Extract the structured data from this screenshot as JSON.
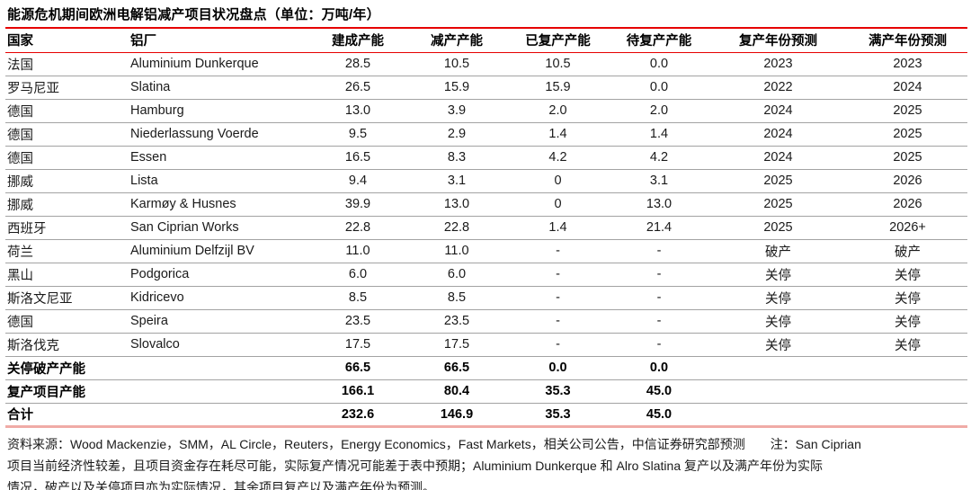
{
  "title": "能源危机期间欧洲电解铝减产项目状况盘点（单位：万吨/年）",
  "table": {
    "columns": [
      {
        "label": "国家"
      },
      {
        "label": "铝厂"
      },
      {
        "label": "建成产能"
      },
      {
        "label": "减产产能"
      },
      {
        "label": "已复产产能"
      },
      {
        "label": "待复产产能"
      },
      {
        "label": "复产年份预测"
      },
      {
        "label": "满产年份预测"
      }
    ],
    "rows": [
      {
        "country": "法国",
        "plant": "Aluminium Dunkerque",
        "built": "28.5",
        "cut": "10.5",
        "resumed": "10.5",
        "pending": "0.0",
        "resume_year": "2023",
        "full_year": "2023"
      },
      {
        "country": "罗马尼亚",
        "plant": "Slatina",
        "built": "26.5",
        "cut": "15.9",
        "resumed": "15.9",
        "pending": "0.0",
        "resume_year": "2022",
        "full_year": "2024"
      },
      {
        "country": "德国",
        "plant": "Hamburg",
        "built": "13.0",
        "cut": "3.9",
        "resumed": "2.0",
        "pending": "2.0",
        "resume_year": "2024",
        "full_year": "2025"
      },
      {
        "country": "德国",
        "plant": "Niederlassung Voerde",
        "built": "9.5",
        "cut": "2.9",
        "resumed": "1.4",
        "pending": "1.4",
        "resume_year": "2024",
        "full_year": "2025"
      },
      {
        "country": "德国",
        "plant": "Essen",
        "built": "16.5",
        "cut": "8.3",
        "resumed": "4.2",
        "pending": "4.2",
        "resume_year": "2024",
        "full_year": "2025"
      },
      {
        "country": "挪威",
        "plant": "Lista",
        "built": "9.4",
        "cut": "3.1",
        "resumed": "0",
        "pending": "3.1",
        "resume_year": "2025",
        "full_year": "2026"
      },
      {
        "country": "挪威",
        "plant": "Karmøy & Husnes",
        "built": "39.9",
        "cut": "13.0",
        "resumed": "0",
        "pending": "13.0",
        "resume_year": "2025",
        "full_year": "2026"
      },
      {
        "country": "西班牙",
        "plant": "San Ciprian Works",
        "built": "22.8",
        "cut": "22.8",
        "resumed": "1.4",
        "pending": "21.4",
        "resume_year": "2025",
        "full_year": "2026+"
      },
      {
        "country": "荷兰",
        "plant": "Aluminium Delfzijl BV",
        "built": "11.0",
        "cut": "11.0",
        "resumed": "-",
        "pending": "-",
        "resume_year": "破产",
        "full_year": "破产"
      },
      {
        "country": "黑山",
        "plant": "Podgorica",
        "built": "6.0",
        "cut": "6.0",
        "resumed": "-",
        "pending": "-",
        "resume_year": "关停",
        "full_year": "关停"
      },
      {
        "country": "斯洛文尼亚",
        "plant": "Kidricevo",
        "built": "8.5",
        "cut": "8.5",
        "resumed": "-",
        "pending": "-",
        "resume_year": "关停",
        "full_year": "关停"
      },
      {
        "country": "德国",
        "plant": "Speira",
        "built": "23.5",
        "cut": "23.5",
        "resumed": "-",
        "pending": "-",
        "resume_year": "关停",
        "full_year": "关停"
      },
      {
        "country": "斯洛伐克",
        "plant": "Slovalco",
        "built": "17.5",
        "cut": "17.5",
        "resumed": "-",
        "pending": "-",
        "resume_year": "关停",
        "full_year": "关停"
      }
    ],
    "summary_rows": [
      {
        "label": "关停破产产能",
        "built": "66.5",
        "cut": "66.5",
        "resumed": "0.0",
        "pending": "0.0",
        "resume_year": "",
        "full_year": ""
      },
      {
        "label": "复产项目产能",
        "built": "166.1",
        "cut": "80.4",
        "resumed": "35.3",
        "pending": "45.0",
        "resume_year": "",
        "full_year": ""
      },
      {
        "label": "合计",
        "built": "232.6",
        "cut": "146.9",
        "resumed": "35.3",
        "pending": "45.0",
        "resume_year": "",
        "full_year": ""
      }
    ]
  },
  "footnote": {
    "lines": [
      "资料来源：Wood Mackenzie，SMM，AL Circle，Reuters，Energy Economics，Fast Markets，相关公司公告，中信证券研究部预测　　注：San Ciprian",
      "项目当前经济性较差，且项目资金存在耗尽可能，实际复产情况可能差于表中预期；Aluminium Dunkerque 和 Alro Slatina 复产以及满产年份为实际",
      "情况，破产以及关停项目亦为实际情况，其余项目复产以及满产年份为预测。"
    ]
  },
  "colors": {
    "accent_red": "#e60000",
    "bottom_border_pink": "#f0aba6",
    "row_divider_gray": "#a3a3a3"
  }
}
